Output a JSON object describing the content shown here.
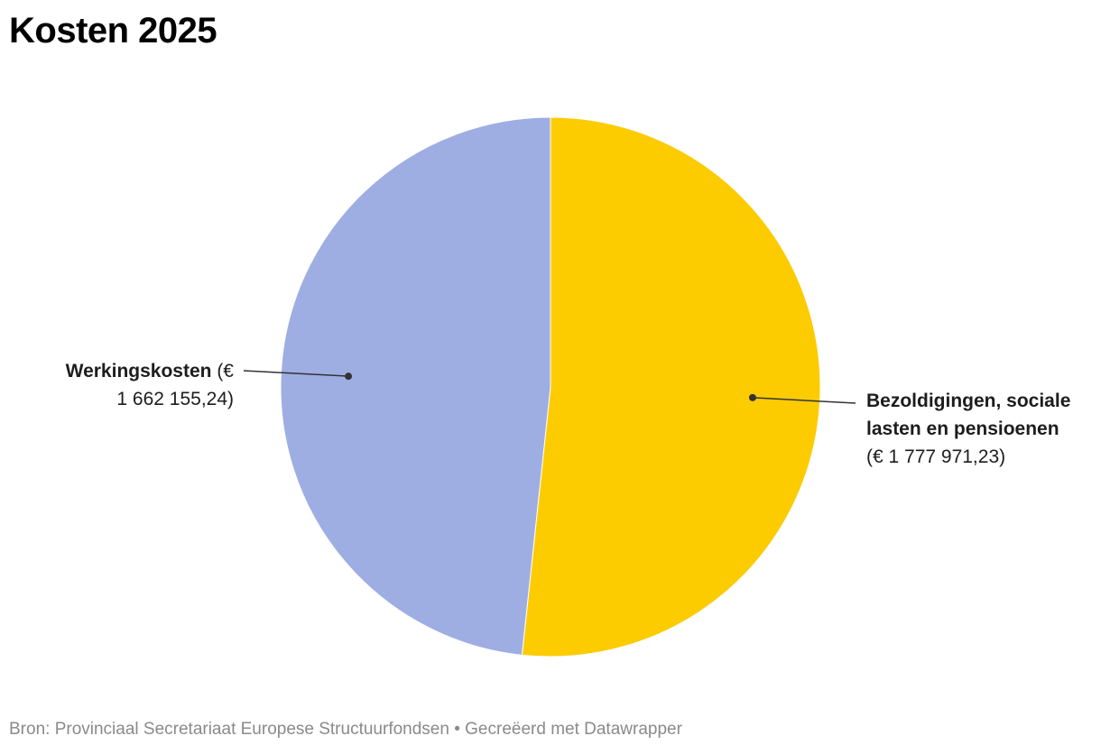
{
  "chart_data": {
    "type": "pie",
    "title": "Kosten 2025",
    "slices": [
      {
        "name": "Bezoldigingen, sociale lasten en pensioenen",
        "value": 1777971.23,
        "value_text": "€ 1 777 971,23",
        "color": "#fccb00"
      },
      {
        "name": "Werkingskosten",
        "value": 1662155.24,
        "value_text": "€ 1 662 155,24",
        "color": "#9eaee3"
      }
    ],
    "start": "top",
    "direction": "clockwise"
  },
  "labels": {
    "werking": {
      "name": "Werkingskosten",
      "open": "(€",
      "amount": "1 662 155,24)"
    },
    "bezold": {
      "name_line1": "Bezoldigingen, sociale",
      "name_line2": "lasten en pensioenen",
      "value_line": "(€ 1 777 971,23)"
    }
  },
  "footer": {
    "text": "Bron: Provinciaal Secretariaat Europese Structuurfondsen • Gecreëerd met Datawrapper"
  }
}
